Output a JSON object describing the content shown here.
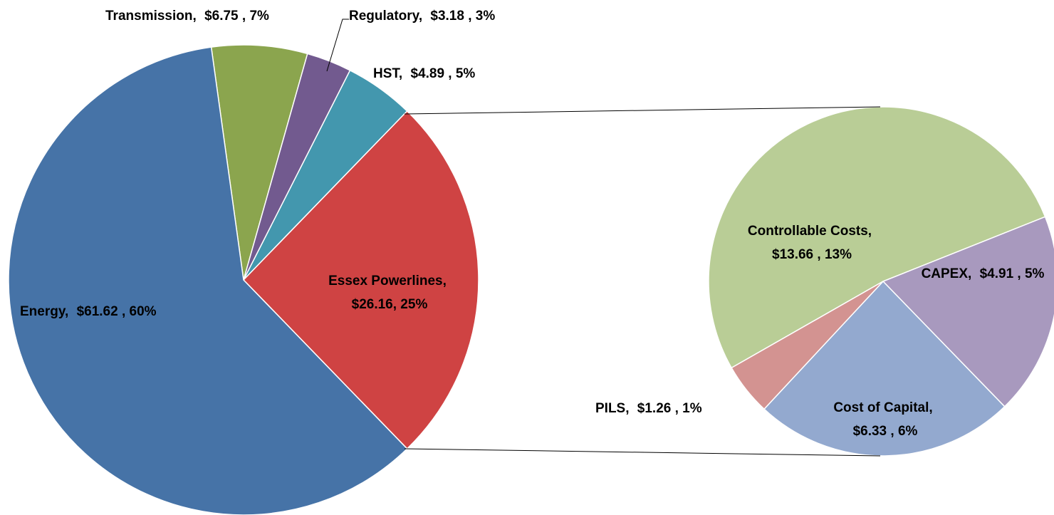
{
  "chart_data": [
    {
      "type": "pie",
      "categories": [
        "Transmission,",
        "Regulatory,",
        "HST,",
        "Essex Powerlines,",
        "Energy,"
      ],
      "values": [
        6.75,
        3.18,
        4.89,
        26.16,
        61.62
      ],
      "value_labels": [
        "$6.75 , 7%",
        "$3.18 , 3%",
        "$4.89 , 5%",
        "$26.16, 25%",
        "$61.62 , 60%"
      ],
      "colors": [
        "#8ba54e",
        "#725a8f",
        "#4397ae",
        "#cf4343",
        "#4673a7"
      ]
    },
    {
      "type": "pie",
      "categories": [
        "Controllable Costs,",
        "CAPEX,",
        "Cost of Capital,",
        "PILS,"
      ],
      "values": [
        13.66,
        4.91,
        6.33,
        1.26
      ],
      "value_labels": [
        "$13.66 , 13%",
        "$4.91 , 5%",
        "$6.33 , 6%",
        "$1.26 , 1%"
      ],
      "colors": [
        "#b9cd96",
        "#a899be",
        "#93a9cf",
        "#d39391"
      ]
    }
  ]
}
